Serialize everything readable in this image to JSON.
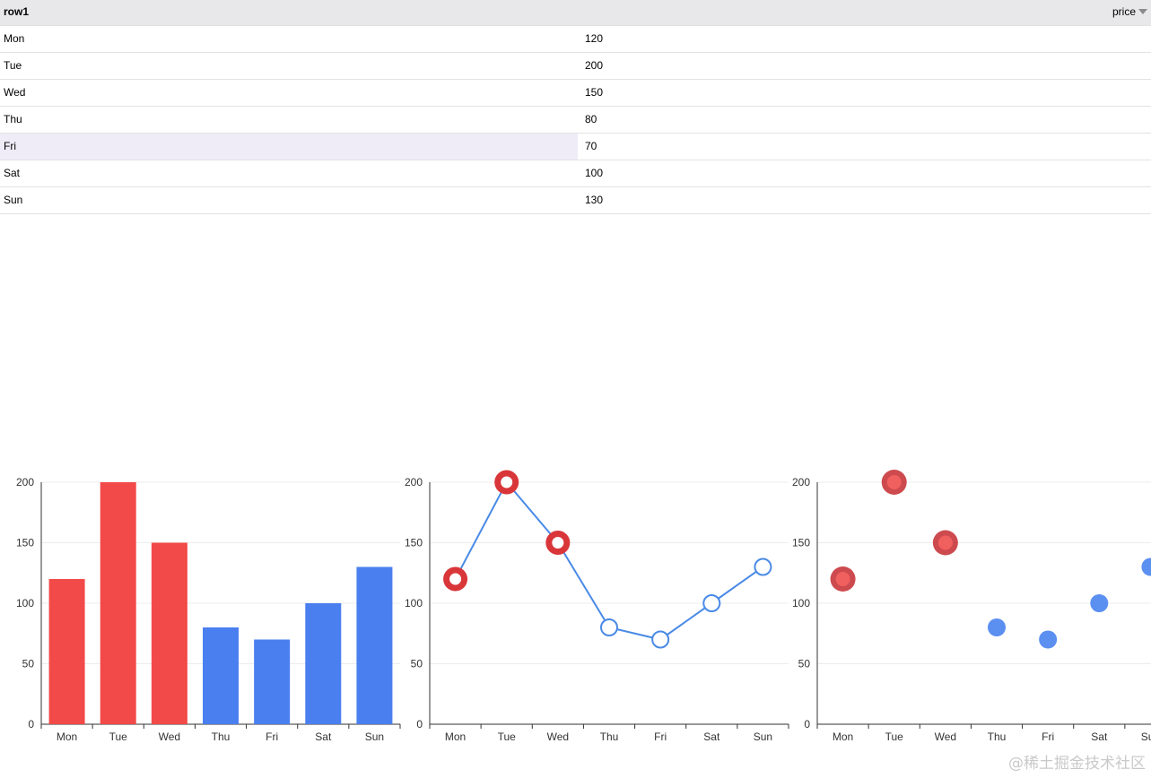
{
  "table": {
    "header": {
      "col1": "row1",
      "col2": "price"
    },
    "rows": [
      {
        "day": "Mon",
        "price": "120"
      },
      {
        "day": "Tue",
        "price": "200"
      },
      {
        "day": "Wed",
        "price": "150"
      },
      {
        "day": "Thu",
        "price": "80"
      },
      {
        "day": "Fri",
        "price": "70"
      },
      {
        "day": "Sat",
        "price": "100"
      },
      {
        "day": "Sun",
        "price": "130"
      }
    ],
    "selected_row": "Fri",
    "header_icon": "caret-down-icon"
  },
  "colors": {
    "highlight": "#f24a48",
    "normal": "#4a7ff0",
    "line": "#4a8ae6",
    "selected_row_bg": "#efecf8"
  },
  "chart_data": [
    {
      "type": "bar",
      "categories": [
        "Mon",
        "Tue",
        "Wed",
        "Thu",
        "Fri",
        "Sat",
        "Sun"
      ],
      "values": [
        120,
        200,
        150,
        80,
        70,
        100,
        130
      ],
      "highlighted": [
        "Mon",
        "Tue",
        "Wed"
      ],
      "ylim": [
        0,
        200
      ],
      "yticks": [
        "0",
        "50",
        "100",
        "150",
        "200"
      ],
      "grid": true
    },
    {
      "type": "line",
      "categories": [
        "Mon",
        "Tue",
        "Wed",
        "Thu",
        "Fri",
        "Sat",
        "Sun"
      ],
      "values": [
        120,
        200,
        150,
        80,
        70,
        100,
        130
      ],
      "highlighted": [
        "Mon",
        "Tue",
        "Wed"
      ],
      "ylim": [
        0,
        200
      ],
      "yticks": [
        "0",
        "50",
        "100",
        "150",
        "200"
      ],
      "grid": true
    },
    {
      "type": "scatter",
      "categories": [
        "Mon",
        "Tue",
        "Wed",
        "Thu",
        "Fri",
        "Sat",
        "Sun"
      ],
      "values": [
        120,
        200,
        150,
        80,
        70,
        100,
        130
      ],
      "highlighted": [
        "Mon",
        "Tue",
        "Wed"
      ],
      "ylim": [
        0,
        200
      ],
      "yticks": [
        "0",
        "50",
        "100",
        "150",
        "200"
      ],
      "grid": true
    }
  ],
  "watermark": "@稀土掘金技术社区"
}
